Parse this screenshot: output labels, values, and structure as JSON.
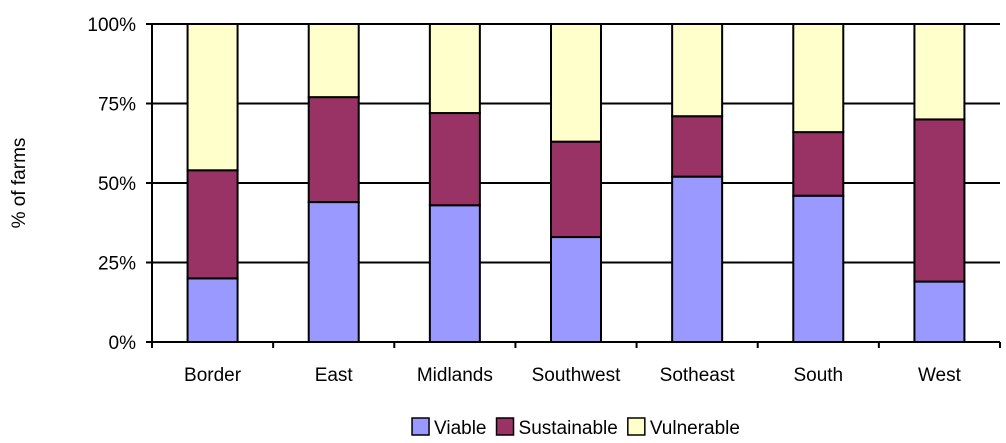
{
  "chart_data": {
    "type": "bar",
    "stacked": true,
    "ylabel": "% of farms",
    "ylim": [
      0,
      100
    ],
    "yticks": [
      "0%",
      "25%",
      "50%",
      "75%",
      "100%"
    ],
    "grid": true,
    "legend_position": "bottom",
    "categories": [
      "Border",
      "East",
      "Midlands",
      "Southwest",
      "Sotheast",
      "South",
      "West"
    ],
    "series": [
      {
        "name": "Viable",
        "color": "#9999ff",
        "values": [
          20,
          44,
          43,
          33,
          52,
          46,
          19
        ]
      },
      {
        "name": "Sustainable",
        "color": "#993366",
        "values": [
          34,
          33,
          29,
          30,
          19,
          20,
          51
        ]
      },
      {
        "name": "Vulnerable",
        "color": "#ffffcc",
        "values": [
          46,
          23,
          28,
          37,
          29,
          34,
          30
        ]
      }
    ]
  }
}
